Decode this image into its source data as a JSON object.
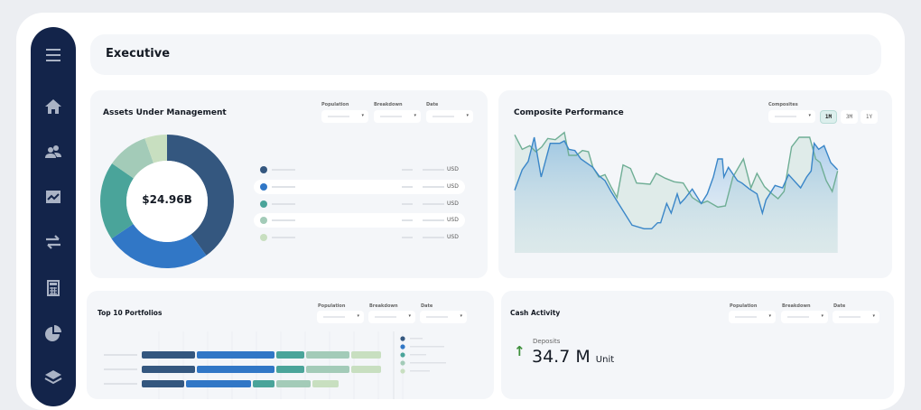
{
  "header": {
    "title": "Executive"
  },
  "sidebar": {
    "items": [
      {
        "icon": "menu-icon"
      },
      {
        "icon": "home-icon"
      },
      {
        "icon": "users-icon"
      },
      {
        "icon": "chart-folder-icon"
      },
      {
        "icon": "transfer-icon"
      },
      {
        "icon": "calculator-icon"
      },
      {
        "icon": "pie-chart-icon"
      },
      {
        "icon": "layers-icon"
      }
    ]
  },
  "colors": {
    "sidebar": "#13244a",
    "navy": "#34577f",
    "blue": "#3177c6",
    "teal": "#4aa49a",
    "lightteal": "#a3cbb8",
    "pale": "#c8dfc0",
    "green_arrow": "#3d8f3a"
  },
  "aum": {
    "title": "Assets Under Management",
    "filters": [
      {
        "label": "Population"
      },
      {
        "label": "Breakdown"
      },
      {
        "label": "Date"
      }
    ],
    "total": "$24.96B",
    "legend": [
      {
        "unit": "USD"
      },
      {
        "unit": "USD"
      },
      {
        "unit": "USD"
      },
      {
        "unit": "USD"
      },
      {
        "unit": "USD"
      }
    ]
  },
  "composite": {
    "title": "Composite Performance",
    "filter_label": "Composites",
    "ranges": [
      "1M",
      "3M",
      "1Y"
    ],
    "active_range": "1M"
  },
  "top10": {
    "title": "Top 10 Portfolios",
    "filters": [
      {
        "label": "Population"
      },
      {
        "label": "Breakdown"
      },
      {
        "label": "Date"
      }
    ]
  },
  "cash": {
    "title": "Cash Activity",
    "filters": [
      {
        "label": "Population"
      },
      {
        "label": "Breakdown"
      },
      {
        "label": "Date"
      }
    ],
    "metric_label": "Deposits",
    "value": "34.7 M",
    "unit": "Unit",
    "trend": "up"
  },
  "chart_data": [
    {
      "type": "pie",
      "donut": true,
      "center_label": "$24.96B",
      "values": [
        40,
        25.6,
        19,
        10,
        5.4
      ],
      "colors": [
        "#34577f",
        "#3177c6",
        "#4aa49a",
        "#a3cbb8",
        "#c8dfc0"
      ]
    },
    {
      "type": "area",
      "grid": false,
      "series": [
        {
          "color": "#6fae95",
          "points": [
            [
              0,
              98
            ],
            [
              1.25,
              86
            ],
            [
              2.5,
              89
            ],
            [
              3.5,
              84
            ],
            [
              4.5,
              88
            ],
            [
              5.5,
              95
            ],
            [
              6.75,
              94
            ],
            [
              8.25,
              100
            ],
            [
              9,
              81
            ],
            [
              10.25,
              81
            ],
            [
              11.25,
              85
            ],
            [
              12.25,
              84
            ],
            [
              13,
              71
            ],
            [
              14,
              63
            ],
            [
              15,
              65
            ],
            [
              16,
              55
            ],
            [
              17,
              46
            ],
            [
              18,
              73
            ],
            [
              19.25,
              70
            ],
            [
              20.25,
              58
            ],
            [
              22.5,
              57
            ],
            [
              23.5,
              66
            ],
            [
              25,
              62
            ],
            [
              26.5,
              59
            ],
            [
              28,
              58
            ],
            [
              29.5,
              46
            ],
            [
              31,
              41
            ],
            [
              32,
              43
            ],
            [
              33.75,
              38
            ],
            [
              35,
              39
            ],
            [
              36.25,
              63
            ],
            [
              38,
              78
            ],
            [
              39.25,
              54
            ],
            [
              40.25,
              66
            ],
            [
              41.5,
              55
            ],
            [
              42.75,
              49
            ],
            [
              43.75,
              45
            ],
            [
              44.75,
              51
            ],
            [
              46,
              88
            ],
            [
              47.25,
              96
            ],
            [
              49,
              96
            ],
            [
              50,
              78
            ],
            [
              50.75,
              75
            ],
            [
              51.75,
              60
            ],
            [
              52.75,
              51
            ],
            [
              53.65,
              68
            ]
          ]
        },
        {
          "color": "#3a86c8",
          "points": [
            [
              0,
              52
            ],
            [
              1.25,
              69
            ],
            [
              2.25,
              76
            ],
            [
              3.25,
              96
            ],
            [
              4.4,
              63
            ],
            [
              5.9,
              91
            ],
            [
              7.5,
              91
            ],
            [
              8.25,
              93
            ],
            [
              9,
              86
            ],
            [
              10,
              85
            ],
            [
              11,
              78
            ],
            [
              13,
              71
            ],
            [
              14,
              64
            ],
            [
              15,
              60
            ],
            [
              16,
              51
            ],
            [
              18,
              35
            ],
            [
              19.5,
              23
            ],
            [
              21.5,
              20
            ],
            [
              22.75,
              20
            ],
            [
              23.75,
              25
            ],
            [
              24.25,
              25
            ],
            [
              25.25,
              41
            ],
            [
              26,
              33
            ],
            [
              27,
              49
            ],
            [
              27.5,
              41
            ],
            [
              28.25,
              45
            ],
            [
              29.5,
              53
            ],
            [
              31,
              41
            ],
            [
              32,
              49
            ],
            [
              33,
              63
            ],
            [
              33.75,
              78
            ],
            [
              34.5,
              78
            ],
            [
              34.75,
              63
            ],
            [
              35.5,
              71
            ],
            [
              37,
              60
            ],
            [
              37.75,
              58
            ],
            [
              39,
              53
            ],
            [
              40.25,
              49
            ],
            [
              41.15,
              33
            ],
            [
              41.75,
              44
            ],
            [
              43.25,
              56
            ],
            [
              44.5,
              54
            ],
            [
              45.5,
              65
            ],
            [
              47.5,
              54
            ],
            [
              48.5,
              63
            ],
            [
              49.25,
              68
            ],
            [
              49.75,
              91
            ],
            [
              50.5,
              86
            ],
            [
              51.4,
              89
            ],
            [
              52.5,
              75
            ],
            [
              53.65,
              69
            ]
          ]
        }
      ]
    },
    {
      "type": "bar",
      "orientation": "horizontal",
      "stacked": true,
      "rows": [
        [
          61,
          88,
          33,
          50,
          35
        ],
        [
          61,
          88,
          33,
          50,
          35
        ],
        [
          49,
          74,
          26,
          40,
          31
        ]
      ],
      "colors": [
        "#34577f",
        "#3177c6",
        "#4aa49a",
        "#a3cbb8",
        "#c8dfc0"
      ]
    }
  ]
}
